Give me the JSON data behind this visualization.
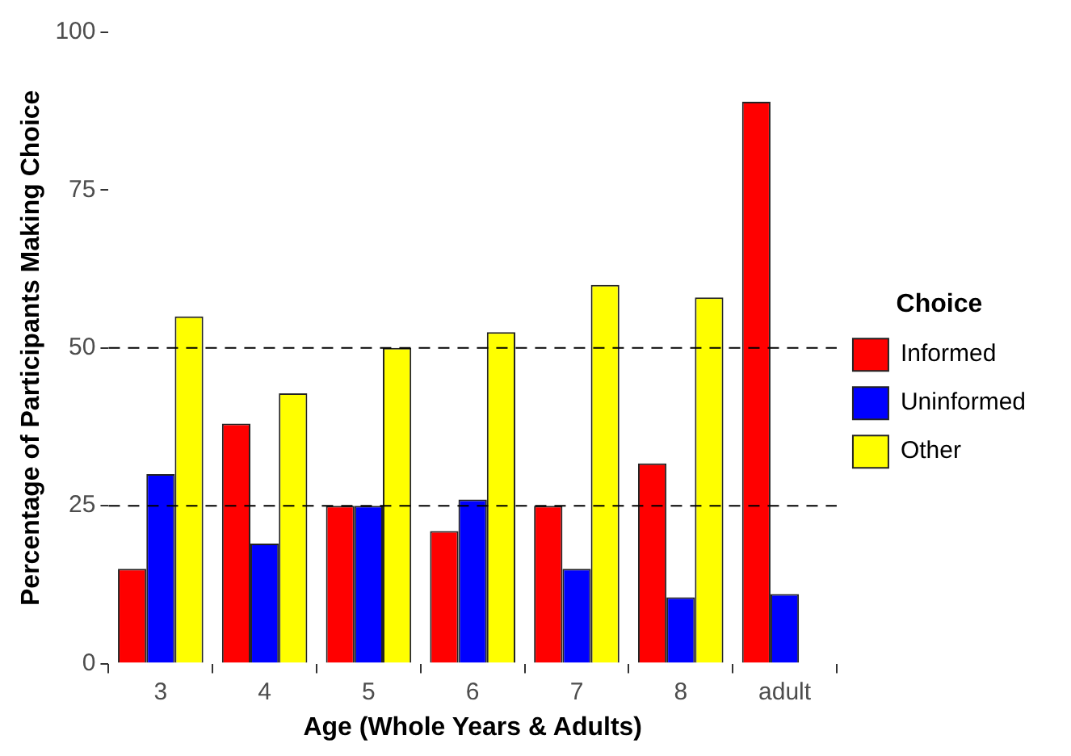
{
  "chart_data": {
    "type": "bar",
    "xlabel": "Age (Whole Years & Adults)",
    "ylabel": "Percentage of Participants Making Choice",
    "legend_title": "Choice",
    "categories": [
      "3",
      "4",
      "5",
      "6",
      "7",
      "8",
      "adult"
    ],
    "series": [
      {
        "name": "Informed",
        "color": "#ff0000",
        "values": [
          15,
          38,
          25,
          21,
          25,
          31.7,
          89
        ]
      },
      {
        "name": "Uninformed",
        "color": "#0000ff",
        "values": [
          30,
          19,
          25,
          26,
          15,
          10.5,
          11
        ]
      },
      {
        "name": "Other",
        "color": "#ffff00",
        "values": [
          55,
          42.8,
          50,
          52.5,
          60,
          58,
          0
        ]
      }
    ],
    "ylim": [
      0,
      100
    ],
    "yticks": [
      0,
      25,
      50,
      75,
      100
    ],
    "ref_lines": [
      {
        "axis": "y",
        "value": 25,
        "line_style": "dashed"
      },
      {
        "axis": "y",
        "value": 50,
        "line_style": "dashed"
      }
    ],
    "grid": false,
    "legend": "right"
  }
}
